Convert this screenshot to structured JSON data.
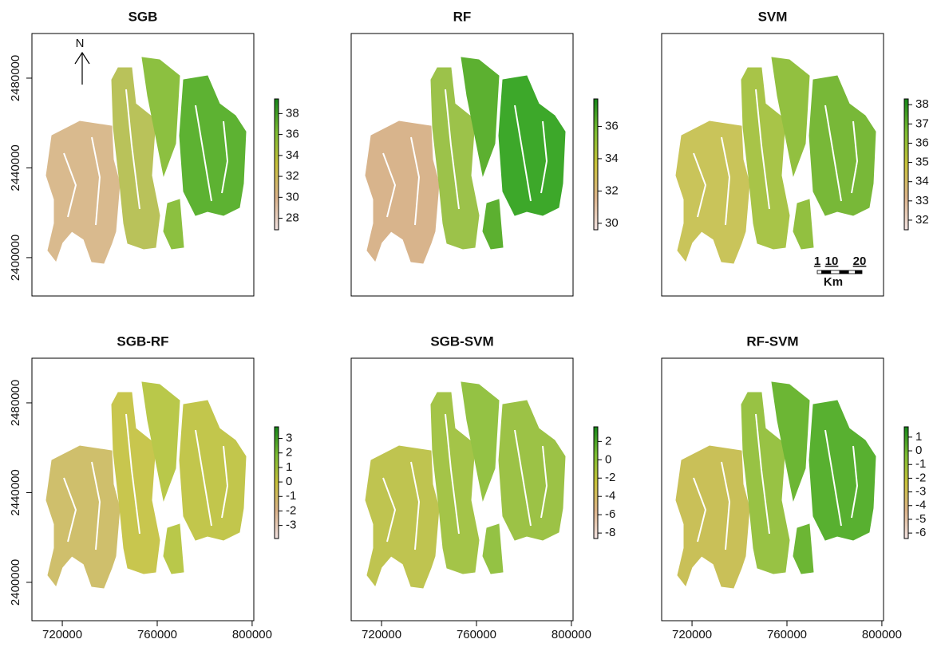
{
  "x_axis": {
    "lim": [
      707200,
      800700
    ],
    "ticks": [
      720000,
      760000,
      800000
    ]
  },
  "y_axis": {
    "lim": [
      2382900,
      2499900
    ],
    "ticks": [
      2400000,
      2440000,
      2480000
    ]
  },
  "panels": [
    {
      "title": "SGB",
      "legend": {
        "lim": [
          26.9,
          39.4
        ],
        "ticks": [
          28,
          30,
          32,
          34,
          36,
          38
        ]
      }
    },
    {
      "title": "RF",
      "legend": {
        "lim": [
          29.6,
          37.7
        ],
        "ticks": [
          30,
          32,
          34,
          36
        ]
      }
    },
    {
      "title": "SVM",
      "legend": {
        "lim": [
          31.5,
          38.3
        ],
        "ticks": [
          32,
          33,
          34,
          35,
          36,
          37,
          38
        ]
      }
    },
    {
      "title": "SGB-RF",
      "legend": {
        "lim": [
          -3.9,
          3.8
        ],
        "ticks": [
          -3,
          -2,
          -1,
          0,
          1,
          2,
          3
        ]
      }
    },
    {
      "title": "SGB-SVM",
      "legend": {
        "lim": [
          -8.6,
          3.6
        ],
        "ticks": [
          -8,
          -6,
          -4,
          -2,
          0,
          2
        ]
      }
    },
    {
      "title": "RF-SVM",
      "legend": {
        "lim": [
          -6.4,
          1.75
        ],
        "ticks": [
          -6,
          -5,
          -4,
          -3,
          -2,
          -1,
          0,
          1
        ]
      }
    }
  ],
  "annotations": {
    "north": "N",
    "scale_bar": {
      "labels": [
        "1",
        "10",
        "20"
      ],
      "unit": "Km"
    }
  }
}
